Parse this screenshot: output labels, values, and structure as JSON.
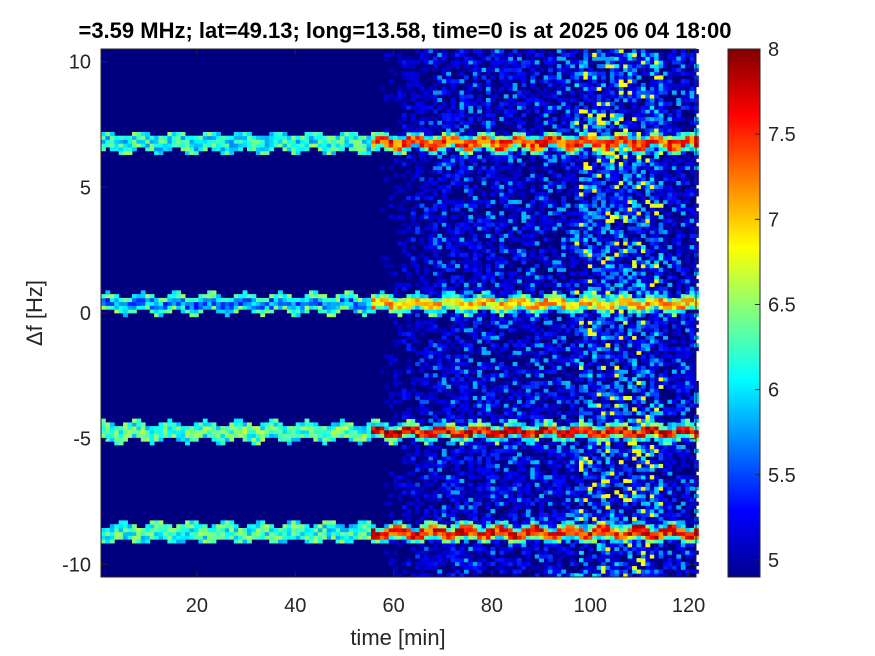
{
  "chart_data": {
    "type": "heatmap",
    "title": "=3.59 MHz;  lat=49.13; long=13.58, time=0 is at 2025 06 04 18:00",
    "xlabel": "time [min]",
    "ylabel": "Δf [Hz]",
    "xlim": [
      0.5,
      121.5
    ],
    "ylim": [
      -10.5,
      10.5
    ],
    "xticks": [
      "20",
      "40",
      "60",
      "80",
      "100",
      "120"
    ],
    "yticks": [
      "10",
      "5",
      "0",
      "-5",
      "-10"
    ],
    "colorbar": {
      "range": [
        4.9,
        8.0
      ],
      "colormap": "jet",
      "ticks": [
        "8",
        "7.5",
        "7",
        "6.5",
        "6",
        "5.5",
        "5"
      ]
    },
    "traces": [
      {
        "center_hz": 6.7,
        "peak_value": 7.8
      },
      {
        "center_hz": 0.3,
        "peak_value": 7.4
      },
      {
        "center_hz": -4.8,
        "peak_value": 8.0
      },
      {
        "center_hz": -8.8,
        "peak_value": 7.9
      }
    ],
    "broadband_noise": {
      "onset_min": 55,
      "strongest_min": [
        96,
        114
      ],
      "peak_value": 6.6
    }
  }
}
